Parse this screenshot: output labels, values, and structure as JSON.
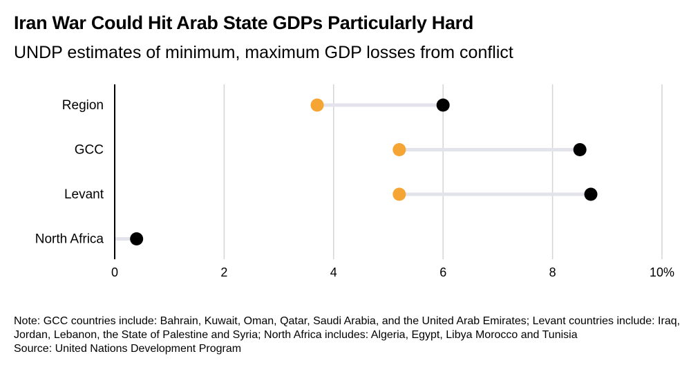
{
  "chart_data": {
    "type": "dumbbell",
    "title": "Iran War Could Hit Arab State GDPs Particularly Hard",
    "subtitle": "UNDP estimates of minimum, maximum GDP losses from conflict",
    "categories": [
      "Region",
      "GCC",
      "Levant",
      "North Africa"
    ],
    "series": [
      {
        "key": "minimum",
        "values": [
          3.7,
          5.2,
          5.2,
          0
        ],
        "color": "#f5a533"
      },
      {
        "key": "maximum",
        "values": [
          6.0,
          8.5,
          8.7,
          0.4
        ],
        "color": "#000000"
      }
    ],
    "connector_color": "#e3e3ec",
    "xlim": [
      0,
      10
    ],
    "x_ticks": [
      0,
      2,
      4,
      6,
      8,
      10
    ],
    "x_tick_labels": [
      "0",
      "2",
      "4",
      "6",
      "8",
      "10%"
    ],
    "grid": "vertical",
    "note": "Note: GCC countries include: Bahrain, Kuwait, Oman, Qatar, Saudi Arabia, and the United Arab Emirates; Levant countries include: Iraq, Jordan, Lebanon, the State of Palestine and Syria; North Africa includes: Algeria, Egypt, Libya Morocco and Tunisia",
    "source": "Source: United Nations Development Program"
  }
}
